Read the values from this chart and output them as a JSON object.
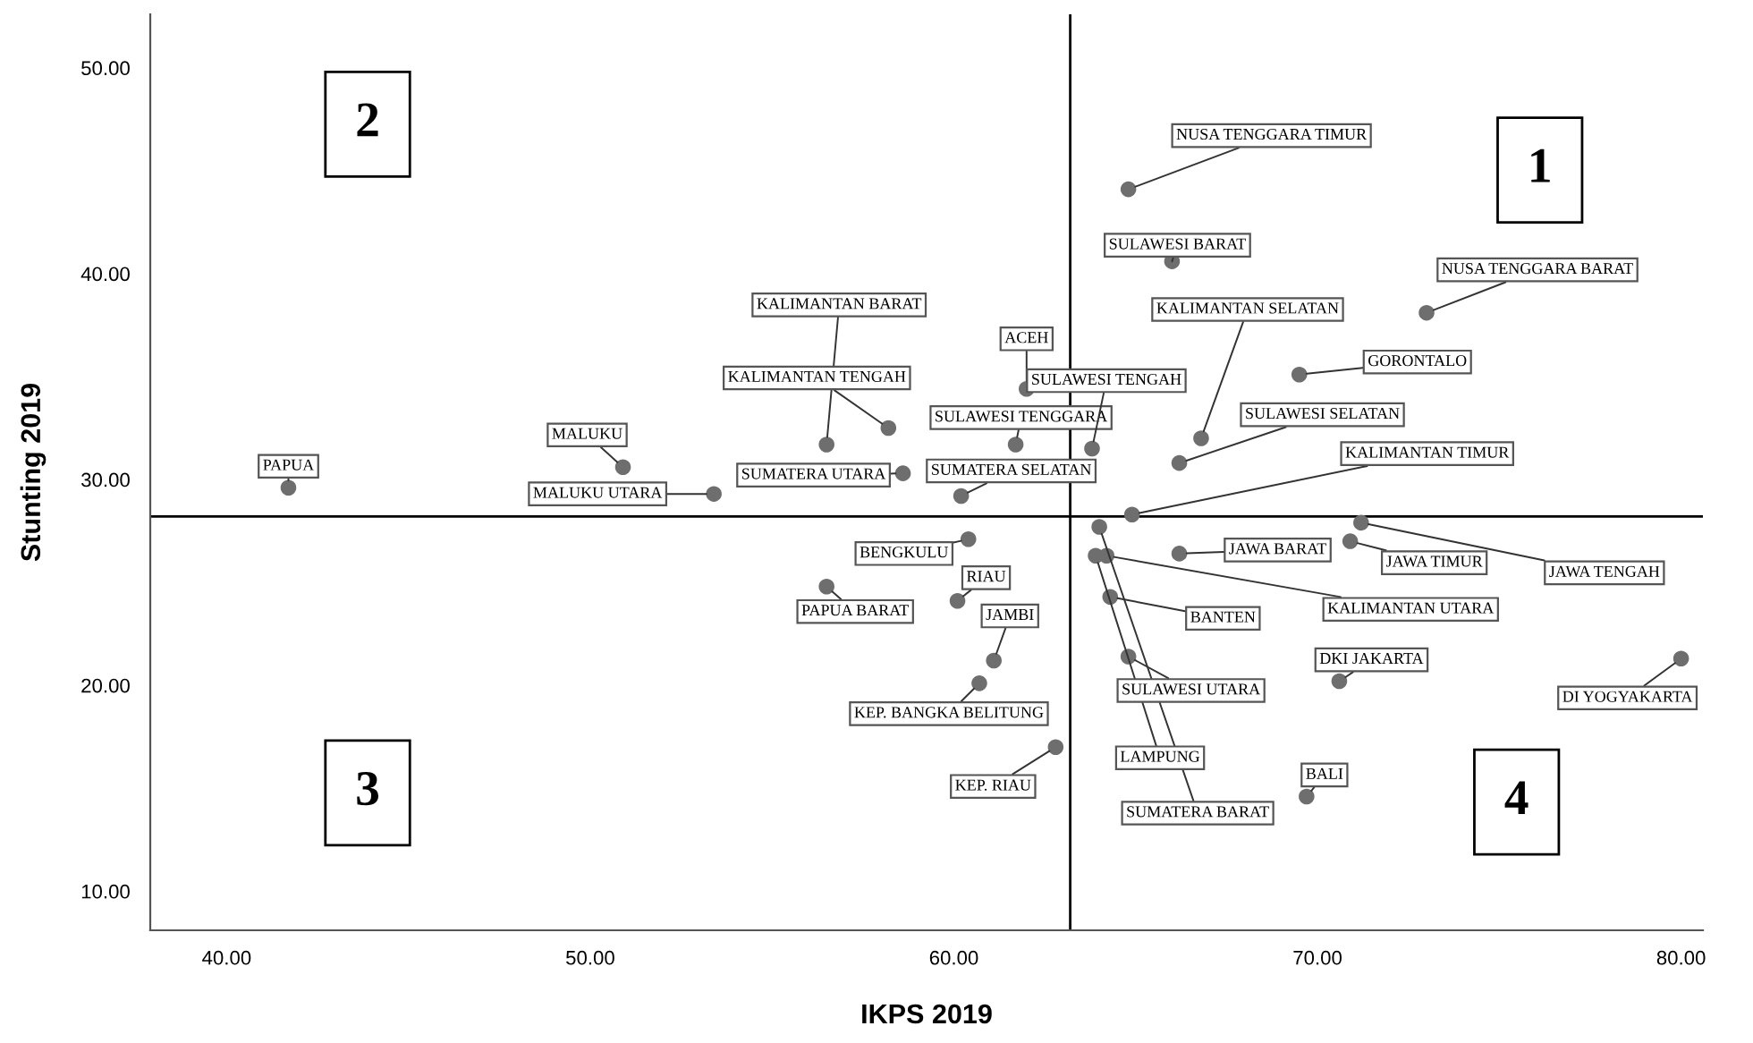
{
  "chart_data": {
    "type": "scatter",
    "xlabel": "IKPS 2019",
    "ylabel": "Stunting 2019",
    "xlim": [
      37.9,
      80.6
    ],
    "ylim": [
      8.1,
      52.6
    ],
    "xticks": [
      {
        "value": 40,
        "label": "40.00"
      },
      {
        "value": 50,
        "label": "50.00"
      },
      {
        "value": 60,
        "label": "60.00"
      },
      {
        "value": 70,
        "label": "70.00"
      },
      {
        "value": 80,
        "label": "80.00"
      }
    ],
    "yticks": [
      {
        "value": 10,
        "label": "10.00"
      },
      {
        "value": 20,
        "label": "20.00"
      },
      {
        "value": 30,
        "label": "30.00"
      },
      {
        "value": 40,
        "label": "40.00"
      },
      {
        "value": 50,
        "label": "50.00"
      }
    ],
    "grid": false,
    "marker": "circle",
    "ref_lines": [
      {
        "axis": "x",
        "value": 63.2,
        "color": "#000000"
      },
      {
        "axis": "y",
        "value": 28.2,
        "color": "#000000"
      }
    ],
    "series": [
      {
        "color": "#6e6e6e",
        "x": [
          41.7,
          50.9,
          53.4,
          56.5,
          58.2,
          58.6,
          62.0,
          61.7,
          60.2,
          63.8,
          66.8,
          66.2,
          69.5,
          73.0,
          64.8,
          66.0,
          64.9,
          71.2,
          70.9,
          66.2,
          64.0,
          63.9,
          64.2,
          64.3,
          64.8,
          70.6,
          80.0,
          69.7,
          60.4,
          60.1,
          56.5,
          61.1,
          60.7,
          62.8
        ],
        "values": [
          29.6,
          30.6,
          29.3,
          31.7,
          32.5,
          30.3,
          34.4,
          31.7,
          29.2,
          31.5,
          32.0,
          30.8,
          35.1,
          38.1,
          44.1,
          40.6,
          28.3,
          27.9,
          27.0,
          26.4,
          27.7,
          26.3,
          26.3,
          24.3,
          21.4,
          20.2,
          21.3,
          14.6,
          27.1,
          24.1,
          24.8,
          21.2,
          20.1,
          17.0
        ]
      }
    ],
    "annotations": [
      {
        "text": "PAPUA",
        "x": 41.7,
        "y": 29.6
      },
      {
        "text": "MALUKU",
        "x": 50.9,
        "y": 30.6
      },
      {
        "text": "MALUKU UTARA",
        "x": 53.4,
        "y": 29.3
      },
      {
        "text": "KALIMANTAN BARAT",
        "x": 56.5,
        "y": 31.7
      },
      {
        "text": "KALIMANTAN TENGAH",
        "x": 58.2,
        "y": 32.5
      },
      {
        "text": "SUMATERA UTARA",
        "x": 58.6,
        "y": 30.3
      },
      {
        "text": "ACEH",
        "x": 62.0,
        "y": 34.4
      },
      {
        "text": "SULAWESI TENGGARA",
        "x": 61.7,
        "y": 31.7
      },
      {
        "text": "SUMATERA SELATAN",
        "x": 60.2,
        "y": 29.2
      },
      {
        "text": "SULAWESI TENGAH",
        "x": 63.8,
        "y": 31.5
      },
      {
        "text": "KALIMANTAN SELATAN",
        "x": 66.8,
        "y": 32.0
      },
      {
        "text": "SULAWESI SELATAN",
        "x": 66.2,
        "y": 30.8
      },
      {
        "text": "GORONTALO",
        "x": 69.5,
        "y": 35.1
      },
      {
        "text": "NUSA TENGGARA BARAT",
        "x": 73.0,
        "y": 38.1
      },
      {
        "text": "NUSA TENGGARA TIMUR",
        "x": 64.8,
        "y": 44.1
      },
      {
        "text": "SULAWESI BARAT",
        "x": 66.0,
        "y": 40.6
      },
      {
        "text": "KALIMANTAN TIMUR",
        "x": 64.9,
        "y": 28.3
      },
      {
        "text": "JAWA TENGAH",
        "x": 71.2,
        "y": 27.9
      },
      {
        "text": "JAWA TIMUR",
        "x": 70.9,
        "y": 27.0
      },
      {
        "text": "JAWA BARAT",
        "x": 66.2,
        "y": 26.4
      },
      {
        "text": "SUMATERA BARAT",
        "x": 64.0,
        "y": 27.7
      },
      {
        "text": "LAMPUNG",
        "x": 63.9,
        "y": 26.3
      },
      {
        "text": "KALIMANTAN UTARA",
        "x": 64.2,
        "y": 26.3
      },
      {
        "text": "BANTEN",
        "x": 64.3,
        "y": 24.3
      },
      {
        "text": "SULAWESI UTARA",
        "x": 64.8,
        "y": 21.4
      },
      {
        "text": "DKI JAKARTA",
        "x": 70.6,
        "y": 20.2
      },
      {
        "text": "DI YOGYAKARTA",
        "x": 80.0,
        "y": 21.3
      },
      {
        "text": "BALI",
        "x": 69.7,
        "y": 14.6
      },
      {
        "text": "BENGKULU",
        "x": 60.4,
        "y": 27.1
      },
      {
        "text": "RIAU",
        "x": 60.1,
        "y": 24.1
      },
      {
        "text": "PAPUA BARAT",
        "x": 56.5,
        "y": 24.8
      },
      {
        "text": "JAMBI",
        "x": 61.1,
        "y": 21.2
      },
      {
        "text": "KEP. BANGKA BELITUNG",
        "x": 60.7,
        "y": 20.1
      },
      {
        "text": "KEP. RIAU",
        "x": 62.8,
        "y": 17.0
      },
      "1",
      "2",
      "3",
      "4"
    ]
  }
}
